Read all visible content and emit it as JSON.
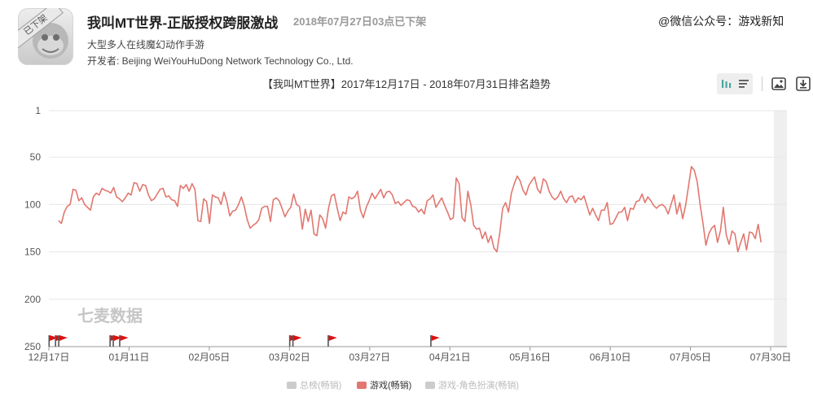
{
  "app": {
    "title": "我叫MT世界-正版授权跨服激战",
    "status": "2018年07月27日03点已下架",
    "badge": "已下架",
    "subtitle": "大型多人在线魔幻动作手游",
    "developer": "开发者: Beijing WeiYouHuDong Network Technology Co., Ltd."
  },
  "wechat_watermark": "@微信公众号：游戏新知",
  "chart_watermark": "七麦数据",
  "toolbar": {
    "icons": [
      "bar-chart-icon",
      "list-icon",
      "image-icon",
      "download-icon"
    ]
  },
  "colors": {
    "line": "#e2776f",
    "flag": "#dd1111",
    "grid": "#e6e6e6",
    "inactive": "#cccccc"
  },
  "legend": [
    {
      "label": "总榜(畅销)",
      "color": "#cccccc",
      "active": false
    },
    {
      "label": "游戏(畅销)",
      "color": "#e2776f",
      "active": true
    },
    {
      "label": "游戏-角色扮演(畅销)",
      "color": "#cccccc",
      "active": false
    }
  ],
  "chart_data": {
    "type": "line",
    "title": "【我叫MT世界】2017年12月17日 - 2018年07月31日排名趋势",
    "x_range": [
      "2017-12-17",
      "2018-07-31"
    ],
    "x_ticks": [
      "12月17日",
      "01月11日",
      "02月05日",
      "03月02日",
      "03月27日",
      "04月21日",
      "05月16日",
      "06月10日",
      "07月05日",
      "07月30日"
    ],
    "y_ticks": [
      1,
      50,
      100,
      150,
      200,
      250
    ],
    "ylim": [
      1,
      250
    ],
    "y_inverted": true,
    "grid": "horizontal",
    "series": [
      {
        "name": "游戏(畅销)",
        "start": "2017-12-20",
        "end": "2018-07-27",
        "values": [
          117,
          120,
          108,
          102,
          100,
          84,
          85,
          96,
          93,
          100,
          103,
          106,
          92,
          88,
          90,
          83,
          85,
          86,
          88,
          82,
          92,
          94,
          97,
          93,
          88,
          90,
          77,
          78,
          86,
          79,
          80,
          90,
          96,
          94,
          89,
          84,
          83,
          92,
          91,
          95,
          96,
          102,
          80,
          83,
          79,
          86,
          78,
          84,
          117,
          118,
          94,
          97,
          120,
          90,
          92,
          93,
          100,
          87,
          97,
          112,
          107,
          106,
          100,
          92,
          102,
          116,
          125,
          122,
          120,
          116,
          104,
          102,
          102,
          118,
          95,
          93,
          96,
          104,
          113,
          107,
          103,
          89,
          100,
          102,
          126,
          105,
          118,
          106,
          131,
          133,
          111,
          115,
          125,
          104,
          91,
          89,
          104,
          117,
          108,
          110,
          92,
          94,
          92,
          86,
          106,
          114,
          103,
          96,
          88,
          94,
          89,
          84,
          93,
          87,
          86,
          90,
          99,
          97,
          101,
          98,
          95,
          96,
          102,
          103,
          108,
          105,
          110,
          96,
          94,
          90,
          103,
          98,
          93,
          101,
          108,
          116,
          114,
          72,
          78,
          114,
          118,
          86,
          100,
          122,
          126,
          125,
          136,
          129,
          140,
          133,
          146,
          150,
          130,
          104,
          98,
          108,
          88,
          78,
          70,
          75,
          85,
          90,
          80,
          75,
          71,
          84,
          88,
          73,
          76,
          86,
          92,
          95,
          92,
          86,
          94,
          98,
          92,
          91,
          98,
          93,
          95,
          91,
          101,
          111,
          104,
          111,
          117,
          106,
          106,
          98,
          121,
          120,
          114,
          108,
          108,
          103,
          117,
          104,
          105,
          97,
          96,
          89,
          98,
          92,
          96,
          101,
          104,
          101,
          100,
          103,
          110,
          100,
          90,
          110,
          98,
          115,
          101,
          81,
          60,
          64,
          76,
          100,
          120,
          143,
          131,
          125,
          122,
          140,
          128,
          103,
          132,
          142,
          128,
          131,
          150,
          140,
          131,
          148,
          129,
          130,
          136,
          121,
          140
        ],
        "note": "lower rank number plotted higher"
      }
    ],
    "flags": [
      "2017-12-17",
      "2017-12-19",
      "2017-12-20",
      "2018-01-05",
      "2018-01-06",
      "2018-01-08",
      "2018-03-02",
      "2018-03-03",
      "2018-03-14",
      "2018-04-15"
    ]
  }
}
